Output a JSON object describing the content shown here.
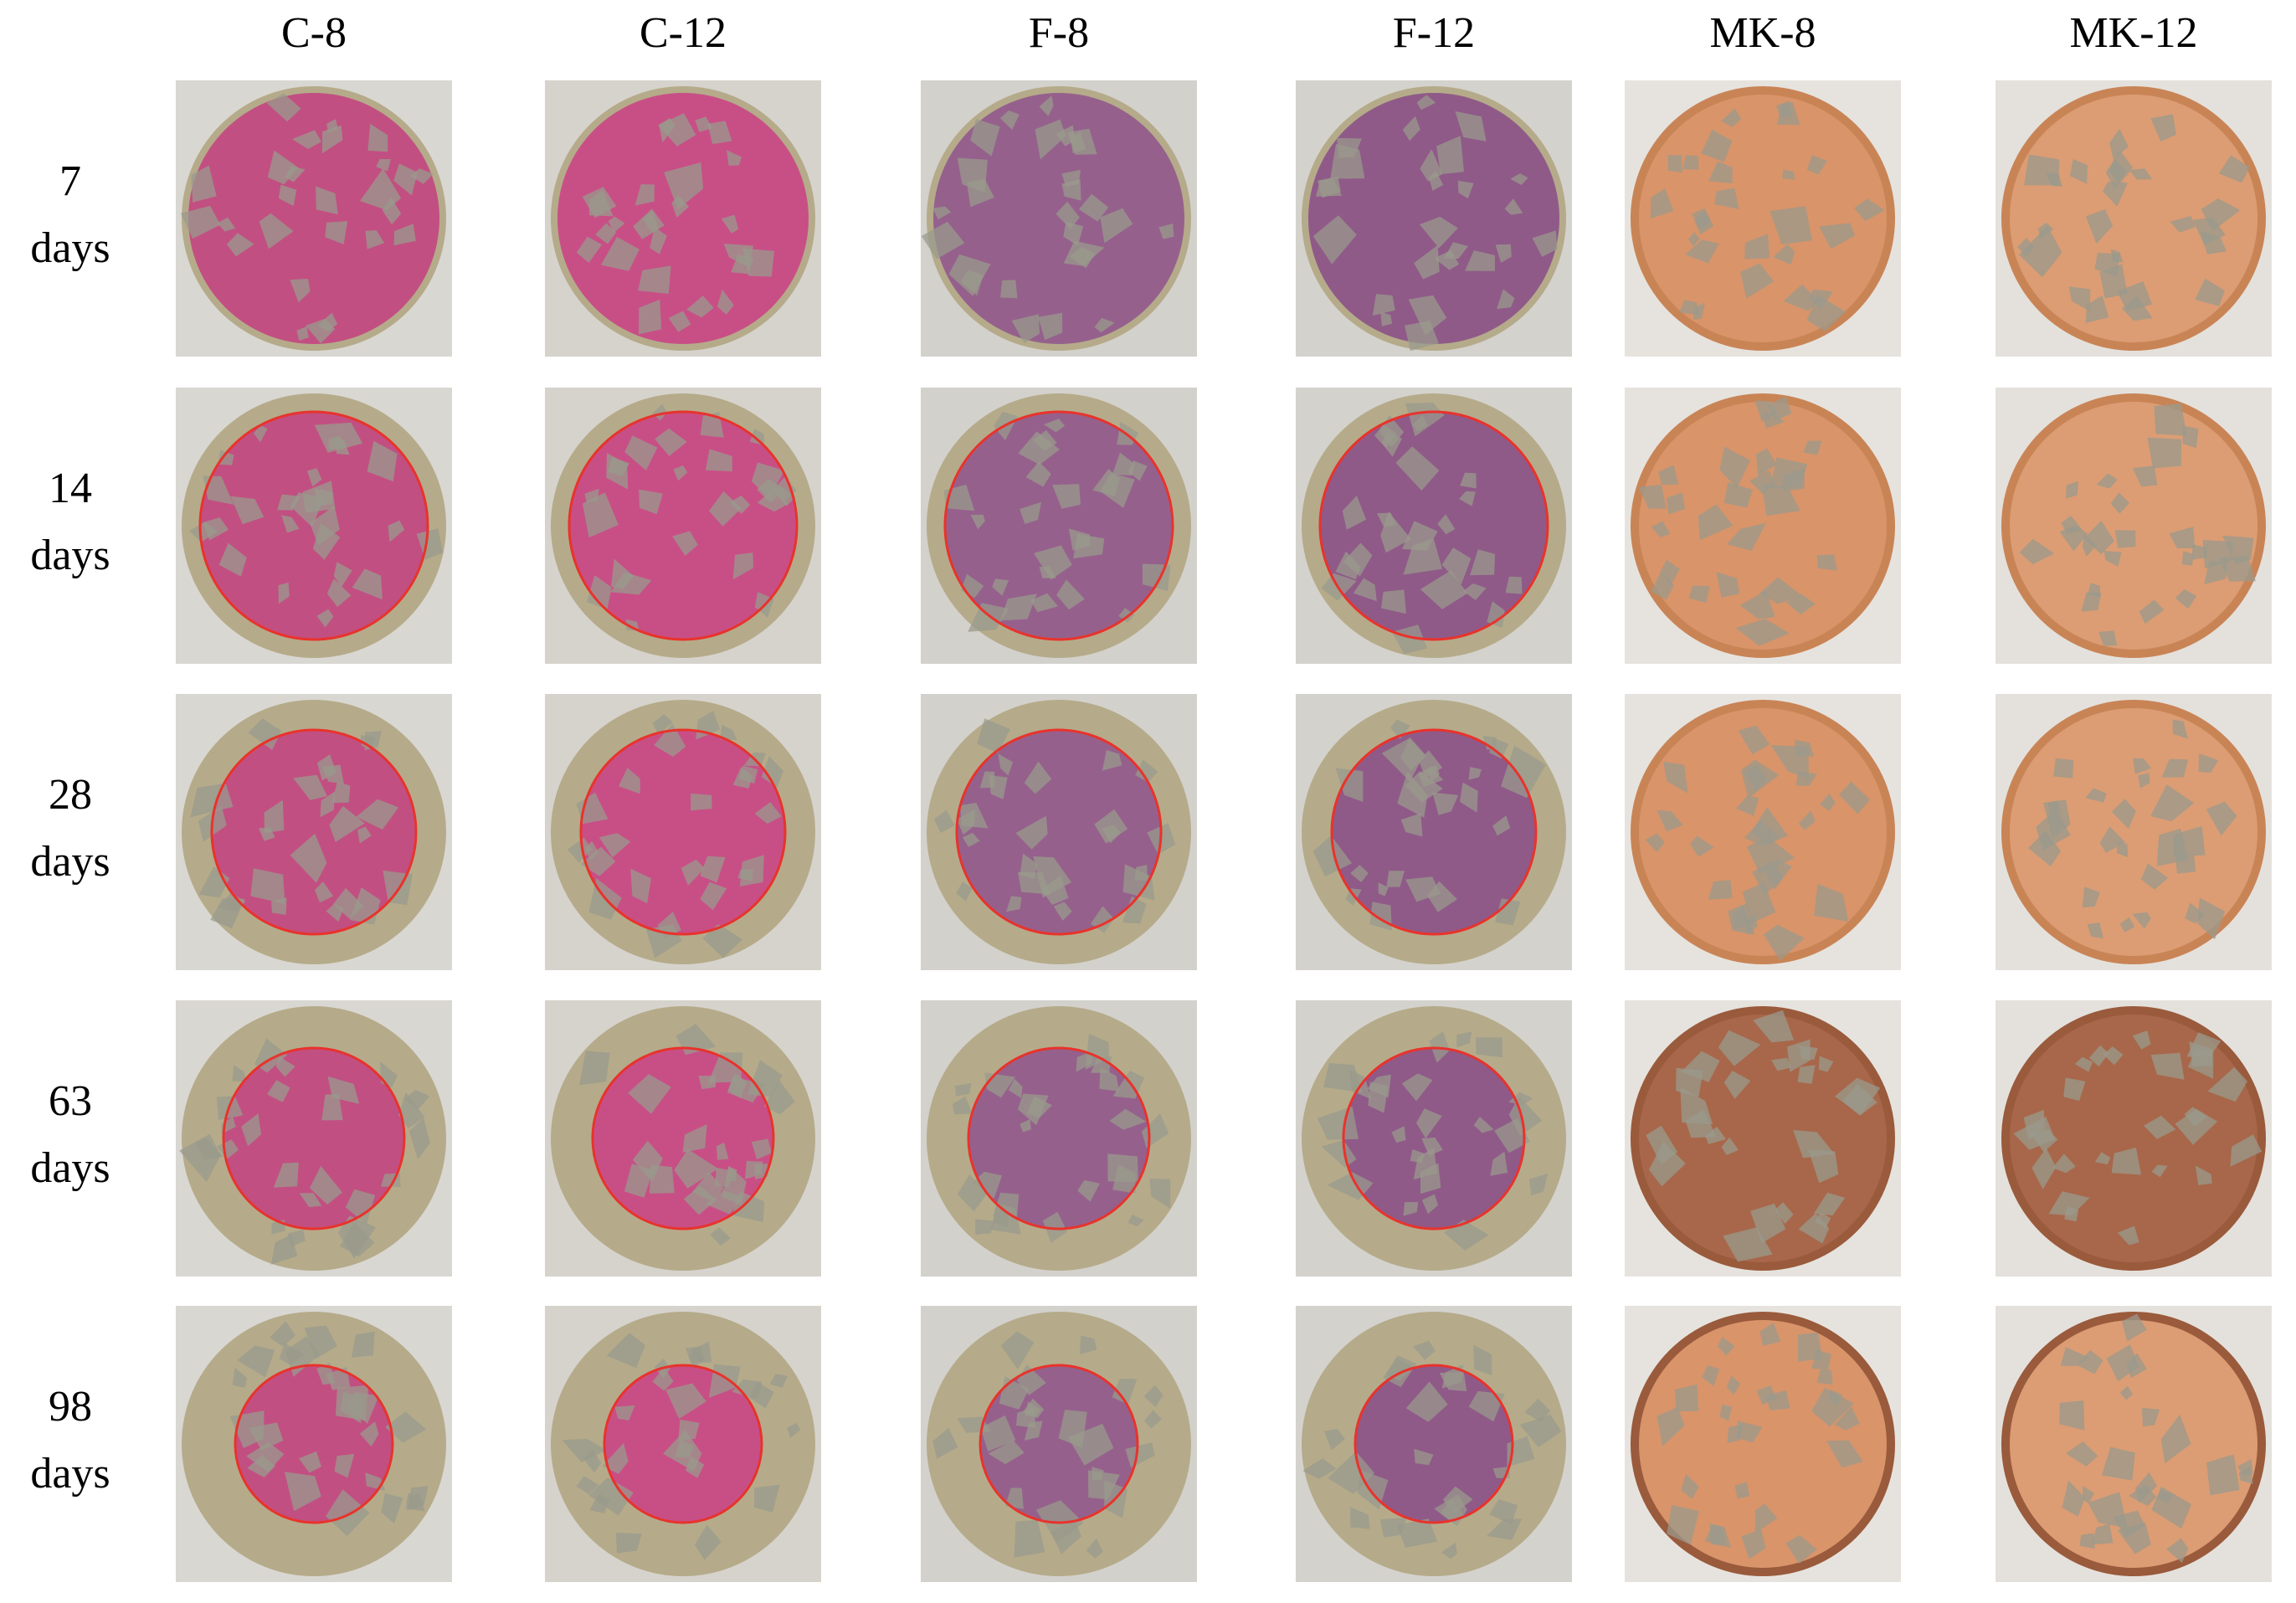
{
  "columns": [
    "C-8",
    "C-12",
    "F-8",
    "F-12",
    "MK-8",
    "MK-12"
  ],
  "rows": [
    {
      "lines": [
        "7",
        "days"
      ]
    },
    {
      "lines": [
        "14",
        "days"
      ]
    },
    {
      "lines": [
        "28",
        "days"
      ]
    },
    {
      "lines": [
        "63",
        "days"
      ]
    },
    {
      "lines": [
        "98",
        "days"
      ]
    }
  ]
}
